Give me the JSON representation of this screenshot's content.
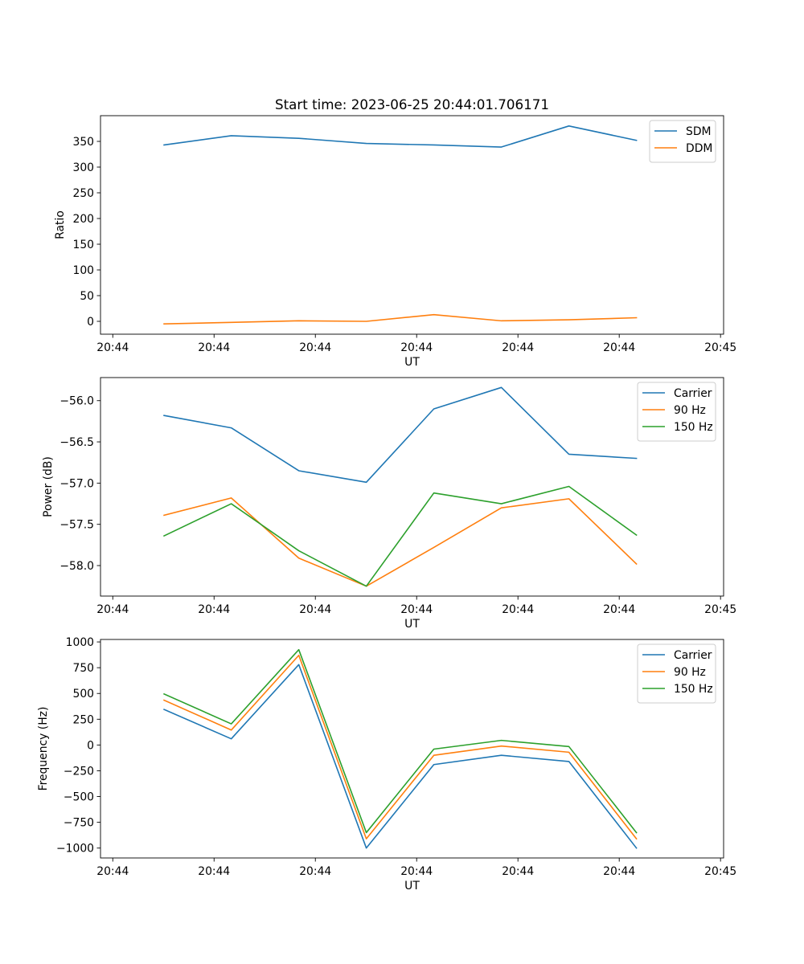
{
  "chart_data": [
    {
      "type": "line",
      "title": "Start time: 2023-06-25 20:44:01.706171",
      "xlabel": "UT",
      "ylabel": "Ratio",
      "xlim": [
        -1.4,
        18.9
      ],
      "ylim": [
        -25,
        400
      ],
      "xticks": [
        {
          "v": -1,
          "label": "20:44"
        },
        {
          "v": 2.3,
          "label": "20:44"
        },
        {
          "v": 5.6,
          "label": "20:44"
        },
        {
          "v": 8.9,
          "label": "20:44"
        },
        {
          "v": 12.2,
          "label": "20:44"
        },
        {
          "v": 15.5,
          "label": "20:44"
        },
        {
          "v": 18.8,
          "label": "20:45"
        }
      ],
      "yticks": [
        0,
        50,
        100,
        150,
        200,
        250,
        300,
        350
      ],
      "x": [
        0.67,
        2.86,
        5.06,
        7.26,
        9.46,
        11.66,
        13.86,
        16.06
      ],
      "series": [
        {
          "name": "SDM",
          "color": "#1f77b4",
          "values": [
            343,
            361,
            356,
            346,
            343,
            339,
            380,
            352
          ]
        },
        {
          "name": "DDM",
          "color": "#ff7f0e",
          "values": [
            -5,
            -2,
            1,
            0,
            13,
            1,
            3,
            7
          ]
        }
      ],
      "legend": "upper right"
    },
    {
      "type": "line",
      "title": "",
      "xlabel": "UT",
      "ylabel": "Power (dB)",
      "xlim": [
        -1.4,
        18.9
      ],
      "ylim": [
        -58.37,
        -55.72
      ],
      "xticks": [
        {
          "v": -1,
          "label": "20:44"
        },
        {
          "v": 2.3,
          "label": "20:44"
        },
        {
          "v": 5.6,
          "label": "20:44"
        },
        {
          "v": 8.9,
          "label": "20:44"
        },
        {
          "v": 12.2,
          "label": "20:44"
        },
        {
          "v": 15.5,
          "label": "20:44"
        },
        {
          "v": 18.8,
          "label": "20:45"
        }
      ],
      "yticks": [
        -58.0,
        -57.5,
        -57.0,
        -56.5,
        -56.0
      ],
      "x": [
        0.67,
        2.86,
        5.06,
        7.26,
        9.46,
        11.66,
        13.86,
        16.06
      ],
      "series": [
        {
          "name": "Carrier",
          "color": "#1f77b4",
          "values": [
            -56.18,
            -56.33,
            -56.85,
            -56.99,
            -56.1,
            -55.84,
            -56.65,
            -56.7
          ]
        },
        {
          "name": "90 Hz",
          "color": "#ff7f0e",
          "values": [
            -57.39,
            -57.18,
            -57.91,
            -58.25,
            -57.78,
            -57.3,
            -57.19,
            -57.98
          ]
        },
        {
          "name": "150 Hz",
          "color": "#2ca02c",
          "values": [
            -57.64,
            -57.25,
            -57.82,
            -58.25,
            -57.12,
            -57.25,
            -57.04,
            -57.63
          ]
        }
      ],
      "legend": "upper right"
    },
    {
      "type": "line",
      "title": "",
      "xlabel": "UT",
      "ylabel": "Frequency (Hz)",
      "xlim": [
        -1.4,
        18.9
      ],
      "ylim": [
        -1096,
        1024
      ],
      "xticks": [
        {
          "v": -1,
          "label": "20:44"
        },
        {
          "v": 2.3,
          "label": "20:44"
        },
        {
          "v": 5.6,
          "label": "20:44"
        },
        {
          "v": 8.9,
          "label": "20:44"
        },
        {
          "v": 12.2,
          "label": "20:44"
        },
        {
          "v": 15.5,
          "label": "20:44"
        },
        {
          "v": 18.8,
          "label": "20:45"
        }
      ],
      "yticks": [
        -1000,
        -750,
        -500,
        -250,
        0,
        250,
        500,
        750,
        1000
      ],
      "x": [
        0.67,
        2.86,
        5.06,
        7.26,
        9.46,
        11.66,
        13.86,
        16.06
      ],
      "series": [
        {
          "name": "Carrier",
          "color": "#1f77b4",
          "values": [
            345,
            60,
            780,
            -1000,
            -190,
            -100,
            -160,
            -1000
          ]
        },
        {
          "name": "90 Hz",
          "color": "#ff7f0e",
          "values": [
            435,
            145,
            870,
            -910,
            -100,
            -10,
            -70,
            -910
          ]
        },
        {
          "name": "150 Hz",
          "color": "#2ca02c",
          "values": [
            495,
            205,
            925,
            -850,
            -40,
            45,
            -15,
            -850
          ]
        }
      ],
      "legend": "upper right"
    }
  ]
}
